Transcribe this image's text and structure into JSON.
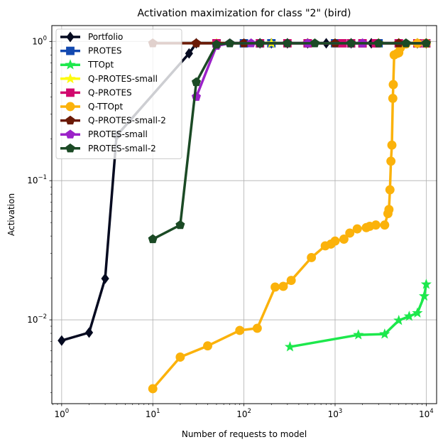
{
  "chart_data": {
    "type": "line",
    "title": "Activation maximization for class \"2\" (bird)",
    "xlabel": "Number of requests to model",
    "ylabel": "Activation",
    "xscale": "log",
    "yscale": "log",
    "xlim": [
      0.78,
      13000
    ],
    "ylim": [
      0.0025,
      1.3
    ],
    "xticks": [
      {
        "value": 1,
        "base": "10",
        "exp": "0"
      },
      {
        "value": 10,
        "base": "10",
        "exp": "1"
      },
      {
        "value": 100,
        "base": "10",
        "exp": "2"
      },
      {
        "value": 1000,
        "base": "10",
        "exp": "3"
      },
      {
        "value": 10000,
        "base": "10",
        "exp": "4"
      }
    ],
    "yticks": [
      {
        "value": 0.01,
        "base": "10",
        "exp": "−2"
      },
      {
        "value": 0.1,
        "base": "10",
        "exp": "−1"
      },
      {
        "value": 1,
        "base": "10",
        "exp": "0"
      }
    ],
    "grid": true,
    "legend_position": "top-left",
    "series": [
      {
        "name": "Portfolio",
        "color": "#050a20",
        "marker": "diamond",
        "points": [
          [
            1,
            0.0071
          ],
          [
            2,
            0.0081
          ],
          [
            3,
            0.0198
          ],
          [
            4,
            0.21
          ],
          [
            25,
            0.82
          ],
          [
            30,
            0.97
          ],
          [
            150,
            0.97
          ],
          [
            200,
            0.97
          ],
          [
            300,
            0.97
          ],
          [
            500,
            0.97
          ],
          [
            800,
            0.97
          ],
          [
            1500,
            0.97
          ],
          [
            2500,
            0.97
          ],
          [
            5000,
            0.97
          ],
          [
            8000,
            0.97
          ],
          [
            10000,
            0.97
          ]
        ]
      },
      {
        "name": "PROTES",
        "color": "#1349b0",
        "marker": "square",
        "points": [
          [
            50,
            0.97
          ],
          [
            100,
            0.97
          ],
          [
            150,
            0.97
          ],
          [
            200,
            0.97
          ],
          [
            500,
            0.97
          ],
          [
            1000,
            0.97
          ],
          [
            1500,
            0.97
          ],
          [
            2000,
            0.97
          ],
          [
            3000,
            0.97
          ],
          [
            5000,
            0.97
          ],
          [
            8000,
            0.97
          ],
          [
            10000,
            0.97
          ]
        ]
      },
      {
        "name": "TTOpt",
        "color": "#1de84c",
        "marker": "star",
        "points": [
          [
            320,
            0.0064
          ],
          [
            1800,
            0.0078
          ],
          [
            3500,
            0.0079
          ],
          [
            5000,
            0.0099
          ],
          [
            6500,
            0.0106
          ],
          [
            8000,
            0.0112
          ],
          [
            9500,
            0.0148
          ],
          [
            10000,
            0.018
          ]
        ]
      },
      {
        "name": "Q-PROTES-small",
        "color": "#fdfb10",
        "marker": "star",
        "points": [
          [
            50,
            0.97
          ],
          [
            200,
            0.97
          ],
          [
            500,
            0.97
          ],
          [
            1000,
            0.97
          ],
          [
            3000,
            0.97
          ],
          [
            5000,
            0.97
          ],
          [
            8000,
            0.97
          ],
          [
            10000,
            0.97
          ]
        ]
      },
      {
        "name": "Q-PROTES",
        "color": "#d1086e",
        "marker": "square",
        "points": [
          [
            50,
            0.97
          ],
          [
            150,
            0.97
          ],
          [
            300,
            0.97
          ],
          [
            500,
            0.97
          ],
          [
            1200,
            0.97
          ],
          [
            1500,
            0.97
          ],
          [
            2000,
            0.97
          ],
          [
            2800,
            0.97
          ],
          [
            5000,
            0.97
          ],
          [
            8000,
            0.97
          ],
          [
            10000,
            0.97
          ]
        ]
      },
      {
        "name": "Q-TTOpt",
        "color": "#fbb20b",
        "marker": "circle",
        "points": [
          [
            10,
            0.0032
          ],
          [
            20,
            0.0054
          ],
          [
            40,
            0.0065
          ],
          [
            90,
            0.0084
          ],
          [
            140,
            0.0087
          ],
          [
            220,
            0.0172
          ],
          [
            270,
            0.0174
          ],
          [
            330,
            0.0192
          ],
          [
            550,
            0.028
          ],
          [
            780,
            0.034
          ],
          [
            900,
            0.035
          ],
          [
            1000,
            0.0368
          ],
          [
            1250,
            0.038
          ],
          [
            1450,
            0.042
          ],
          [
            1750,
            0.045
          ],
          [
            2200,
            0.046
          ],
          [
            2400,
            0.047
          ],
          [
            2800,
            0.048
          ],
          [
            3500,
            0.048
          ],
          [
            3800,
            0.058
          ],
          [
            3900,
            0.062
          ],
          [
            4000,
            0.086
          ],
          [
            4100,
            0.138
          ],
          [
            4200,
            0.18
          ],
          [
            4300,
            0.39
          ],
          [
            4350,
            0.49
          ],
          [
            4450,
            0.8
          ],
          [
            4800,
            0.82
          ],
          [
            5000,
            0.83
          ],
          [
            5200,
            0.9
          ],
          [
            6000,
            0.96
          ],
          [
            8000,
            0.97
          ],
          [
            10000,
            0.97
          ]
        ]
      },
      {
        "name": "Q-PROTES-small-2",
        "color": "#6b1a06",
        "marker": "pentagon",
        "points": [
          [
            10,
            0.97
          ],
          [
            30,
            0.97
          ],
          [
            100,
            0.97
          ],
          [
            500,
            0.97
          ],
          [
            1000,
            0.97
          ],
          [
            5000,
            0.97
          ],
          [
            10000,
            0.97
          ]
        ]
      },
      {
        "name": "PROTES-small",
        "color": "#9b22c8",
        "marker": "pentagon",
        "points": [
          [
            30,
            0.4
          ],
          [
            50,
            0.93
          ],
          [
            70,
            0.97
          ],
          [
            120,
            0.97
          ],
          [
            500,
            0.97
          ],
          [
            2000,
            0.97
          ],
          [
            10000,
            0.97
          ]
        ]
      },
      {
        "name": "PROTES-small-2",
        "color": "#1b4a25",
        "marker": "pentagon",
        "points": [
          [
            10,
            0.038
          ],
          [
            20,
            0.048
          ],
          [
            30,
            0.51
          ],
          [
            50,
            0.95
          ],
          [
            70,
            0.97
          ],
          [
            150,
            0.97
          ],
          [
            300,
            0.97
          ],
          [
            600,
            0.97
          ],
          [
            1500,
            0.97
          ],
          [
            3000,
            0.97
          ],
          [
            6000,
            0.97
          ],
          [
            10000,
            0.97
          ]
        ]
      }
    ]
  }
}
